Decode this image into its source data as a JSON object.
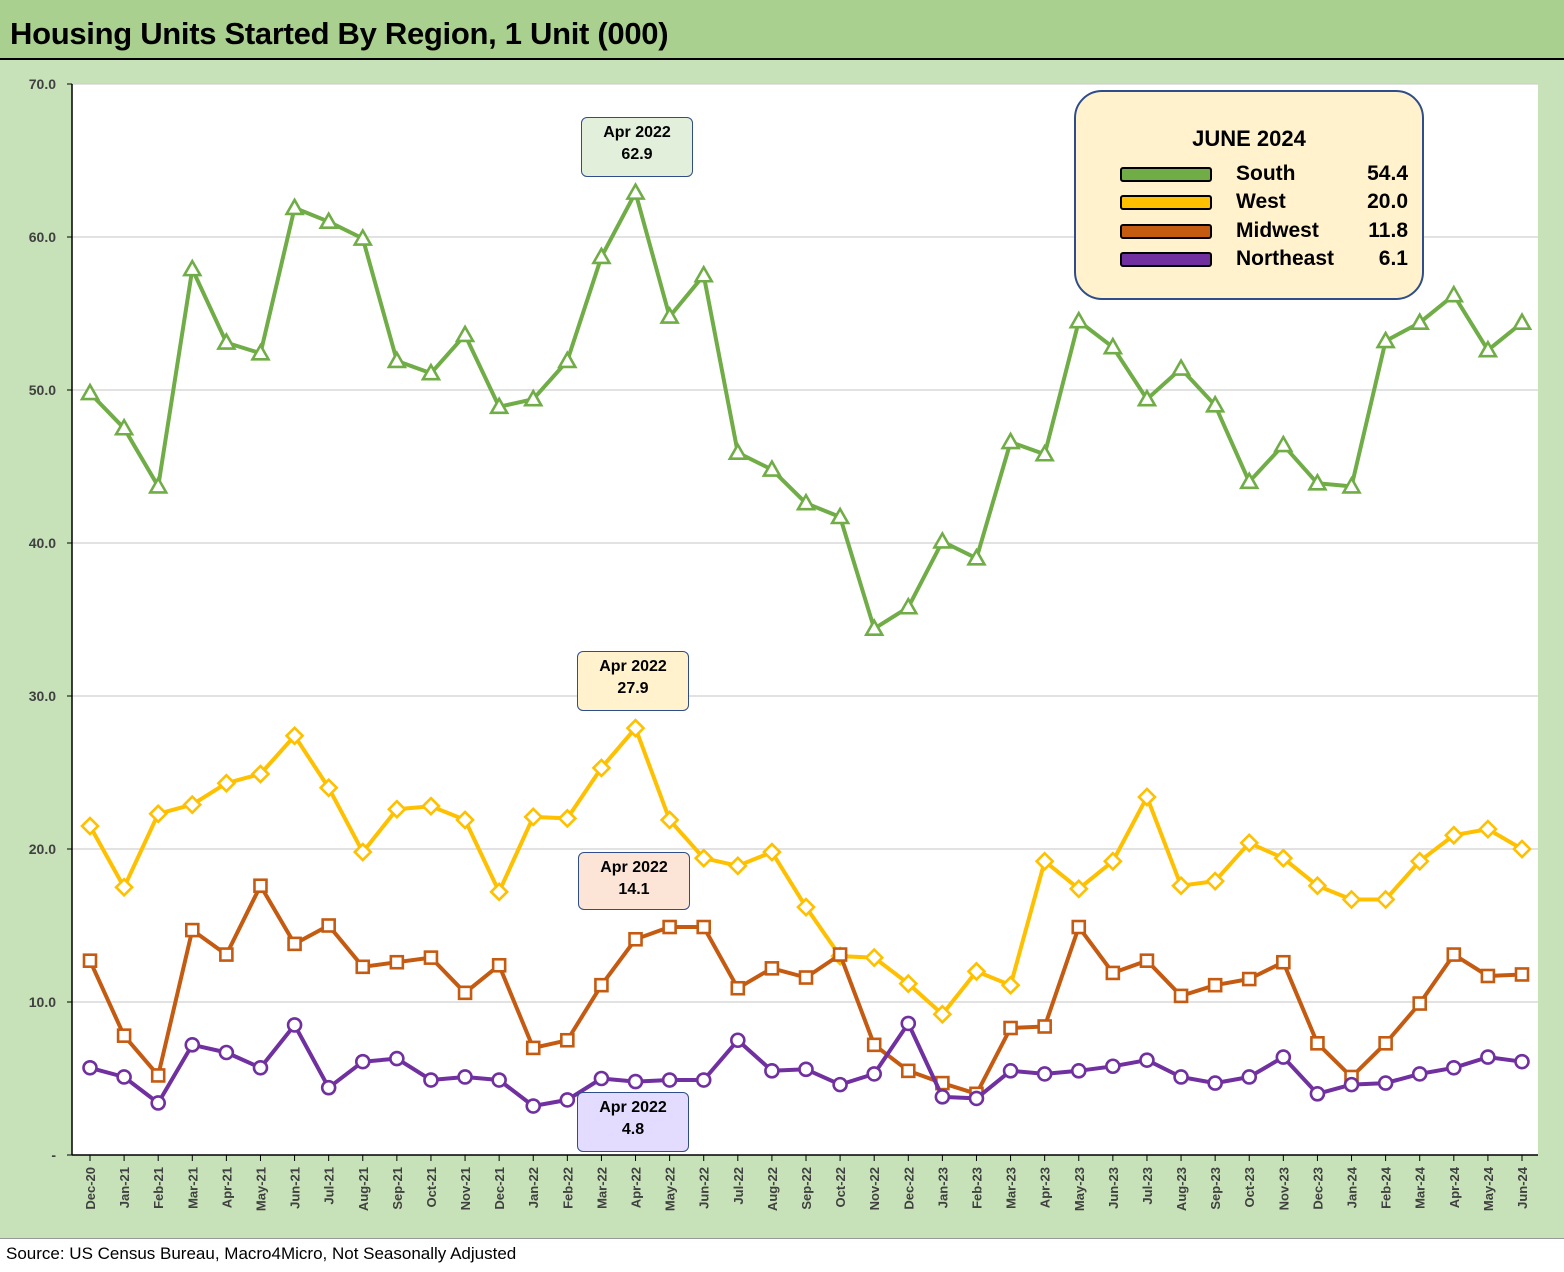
{
  "title": "Housing Units Started By Region, 1 Unit (000)",
  "source": "Source: US Census Bureau, Macro4Micro, Not Seasonally Adjusted",
  "legend": {
    "title": "JUNE 2024",
    "items": [
      {
        "name": "South",
        "value": "54.4",
        "color": "#70ad47"
      },
      {
        "name": "West",
        "value": "20.0",
        "color": "#ffc000"
      },
      {
        "name": "Midwest",
        "value": "11.8",
        "color": "#c55a11"
      },
      {
        "name": "Northeast",
        "value": "6.1",
        "color": "#7030a0"
      }
    ]
  },
  "annotations": [
    {
      "line1": "Apr 2022",
      "line2": "62.9",
      "fill": "#e2efda"
    },
    {
      "line1": "Apr 2022",
      "line2": "27.9",
      "fill": "#fff2cc"
    },
    {
      "line1": "Apr 2022",
      "line2": "14.1",
      "fill": "#fce4d6"
    },
    {
      "line1": "Apr 2022",
      "line2": "4.8",
      "fill": "#e4dcff"
    }
  ],
  "chart_data": {
    "type": "line",
    "title": "Housing Units Started By Region, 1 Unit (000)",
    "xlabel": "",
    "ylabel": "",
    "ylim": [
      0,
      70
    ],
    "yticks": [
      "-",
      "10.0",
      "20.0",
      "30.0",
      "40.0",
      "50.0",
      "60.0",
      "70.0"
    ],
    "grid": true,
    "legend_position": "top-right",
    "categories": [
      "Dec-20",
      "Jan-21",
      "Feb-21",
      "Mar-21",
      "Apr-21",
      "May-21",
      "Jun-21",
      "Jul-21",
      "Aug-21",
      "Sep-21",
      "Oct-21",
      "Nov-21",
      "Dec-21",
      "Jan-22",
      "Feb-22",
      "Mar-22",
      "Apr-22",
      "May-22",
      "Jun-22",
      "Jul-22",
      "Aug-22",
      "Sep-22",
      "Oct-22",
      "Nov-22",
      "Dec-22",
      "Jan-23",
      "Feb-23",
      "Mar-23",
      "Apr-23",
      "May-23",
      "Jun-23",
      "Jul-23",
      "Aug-23",
      "Sep-23",
      "Oct-23",
      "Nov-23",
      "Dec-23",
      "Jan-24",
      "Feb-24",
      "Mar-24",
      "Apr-24",
      "May-24",
      "Jun-24"
    ],
    "series": [
      {
        "name": "South",
        "color": "#70ad47",
        "marker": "triangle",
        "values": [
          49.8,
          47.5,
          43.7,
          57.9,
          53.1,
          52.4,
          61.9,
          61.0,
          59.9,
          51.9,
          51.1,
          53.6,
          48.9,
          49.4,
          51.9,
          58.7,
          62.9,
          54.8,
          57.5,
          45.9,
          44.8,
          42.6,
          41.7,
          34.4,
          35.8,
          40.1,
          39.0,
          46.6,
          45.8,
          54.5,
          52.8,
          49.4,
          51.4,
          49.0,
          44.0,
          46.4,
          43.9,
          43.7,
          53.2,
          54.4,
          56.2,
          52.6,
          54.4
        ]
      },
      {
        "name": "West",
        "color": "#ffc000",
        "marker": "diamond",
        "values": [
          21.5,
          17.5,
          22.3,
          22.9,
          24.3,
          24.9,
          27.4,
          24.0,
          19.8,
          22.6,
          22.8,
          21.9,
          17.2,
          22.1,
          22.0,
          25.3,
          27.9,
          21.9,
          19.4,
          18.9,
          19.8,
          16.2,
          13.0,
          12.9,
          11.2,
          9.2,
          12.0,
          11.1,
          19.2,
          17.4,
          19.2,
          23.4,
          17.6,
          17.9,
          20.4,
          19.4,
          17.6,
          16.7,
          16.7,
          19.2,
          20.9,
          21.3,
          20.0
        ]
      },
      {
        "name": "Midwest",
        "color": "#c55a11",
        "marker": "square",
        "values": [
          12.7,
          7.8,
          5.2,
          14.7,
          13.1,
          17.6,
          13.8,
          15.0,
          12.3,
          12.6,
          12.9,
          10.6,
          12.4,
          7.0,
          7.5,
          11.1,
          14.1,
          14.9,
          14.9,
          10.9,
          12.2,
          11.6,
          13.1,
          7.2,
          5.5,
          4.7,
          4.0,
          8.3,
          8.4,
          14.9,
          11.9,
          12.7,
          10.4,
          11.1,
          11.5,
          12.6,
          7.3,
          5.1,
          7.3,
          9.9,
          13.1,
          11.7,
          11.8
        ]
      },
      {
        "name": "Northeast",
        "color": "#7030a0",
        "marker": "circle",
        "values": [
          5.7,
          5.1,
          3.4,
          7.2,
          6.7,
          5.7,
          8.5,
          4.4,
          6.1,
          6.3,
          4.9,
          5.1,
          4.9,
          3.2,
          3.6,
          5.0,
          4.8,
          4.9,
          4.9,
          7.5,
          5.5,
          5.6,
          4.6,
          5.3,
          8.6,
          3.8,
          3.7,
          5.5,
          5.3,
          5.5,
          5.8,
          6.2,
          5.1,
          4.7,
          5.1,
          6.4,
          4.0,
          4.6,
          4.7,
          5.3,
          5.7,
          6.4,
          6.1
        ]
      }
    ]
  }
}
